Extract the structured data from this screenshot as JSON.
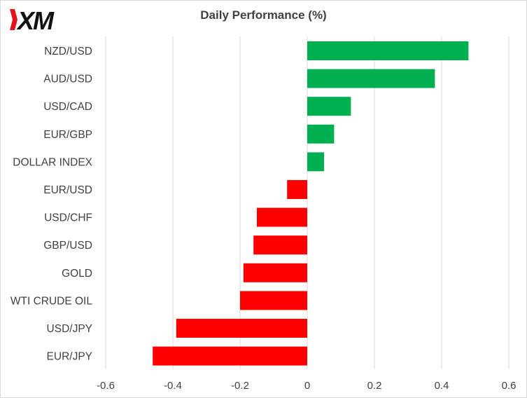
{
  "brand": {
    "logo_text": "XM",
    "logo_color": "#111111",
    "accent_color": "#e4121b"
  },
  "chart_data": {
    "type": "bar",
    "orientation": "horizontal",
    "title": "Daily Performance  (%)",
    "xlabel": "",
    "ylabel": "",
    "xlim": [
      -0.6,
      0.6
    ],
    "xticks": [
      -0.6,
      -0.4,
      -0.2,
      0,
      0.2,
      0.4,
      0.6
    ],
    "xtick_labels": [
      "-0.6",
      "-0.4",
      "-0.2",
      "0",
      "0.2",
      "0.4",
      "0.6"
    ],
    "grid": "vertical",
    "legend": "none",
    "positive_color": "#00b050",
    "negative_color": "#ff0000",
    "categories": [
      "NZD/USD",
      "AUD/USD",
      "USD/CAD",
      "EUR/GBP",
      "DOLLAR INDEX",
      "EUR/USD",
      "USD/CHF",
      "GBP/USD",
      "GOLD",
      "WTI CRUDE OIL",
      "USD/JPY",
      "EUR/JPY"
    ],
    "values": [
      0.48,
      0.38,
      0.13,
      0.08,
      0.05,
      -0.06,
      -0.15,
      -0.16,
      -0.19,
      -0.2,
      -0.39,
      -0.46
    ]
  }
}
